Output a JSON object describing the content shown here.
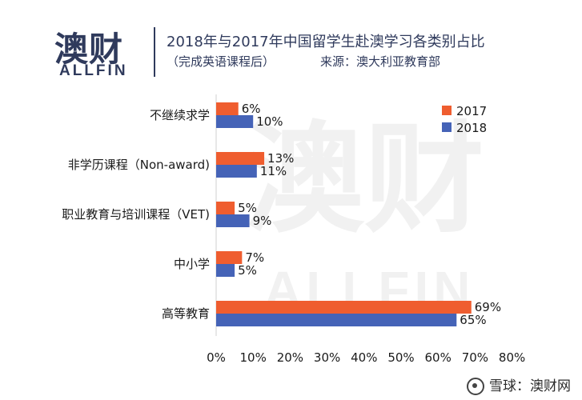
{
  "brand": {
    "logo_cn": "澳财",
    "logo_en": "ALLFIN"
  },
  "header": {
    "title": "2018年与2017年中国留学生赴澳学习各类别占比",
    "subtitle": "（完成英语课程后）",
    "source": "来源：澳大利亚教育部"
  },
  "footer": {
    "text": "雪球：澳财网"
  },
  "chart_data": {
    "type": "bar",
    "orientation": "horizontal",
    "categories": [
      "不继续求学",
      "非学历课程（Non-award)",
      "职业教育与培训课程（VET)",
      "中小学",
      "高等教育"
    ],
    "series": [
      {
        "name": "2017",
        "color": "#ef5d2f",
        "values": [
          6,
          13,
          5,
          7,
          69
        ],
        "labels": [
          "6%",
          "13%",
          "5%",
          "7%",
          "69%"
        ]
      },
      {
        "name": "2018",
        "color": "#4563b7",
        "values": [
          10,
          11,
          9,
          5,
          65
        ],
        "labels": [
          "10%",
          "11%",
          "9%",
          "5%",
          "65%"
        ]
      }
    ],
    "x_ticks": [
      "0%",
      "10%",
      "20%",
      "30%",
      "40%",
      "50%",
      "60%",
      "70%",
      "80%"
    ],
    "xlim": [
      0,
      80
    ],
    "legend_position": "top-right",
    "grid": false
  }
}
